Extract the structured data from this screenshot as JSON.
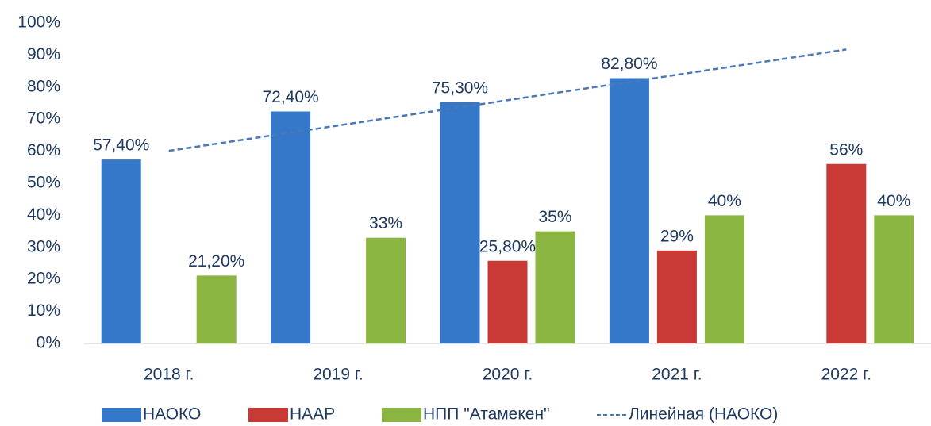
{
  "chart_data": {
    "type": "bar",
    "categories": [
      "2018 г.",
      "2019 г.",
      "2020 г.",
      "2021 г.",
      "2022 г."
    ],
    "series": [
      {
        "name": "НАОКО",
        "color": "#3577c8",
        "values": [
          57.4,
          72.4,
          75.3,
          82.8,
          null
        ],
        "value_labels": [
          "57,40%",
          "72,40%",
          "75,30%",
          "82,80%",
          null
        ]
      },
      {
        "name": "НААР",
        "color": "#c93a36",
        "values": [
          null,
          null,
          25.8,
          29,
          56
        ],
        "value_labels": [
          null,
          null,
          "25,80%",
          "29%",
          "56%"
        ]
      },
      {
        "name": "НПП \"Атамекен\"",
        "color": "#8ab540",
        "values": [
          21.2,
          33,
          35,
          40,
          40
        ],
        "value_labels": [
          "21,20%",
          "33%",
          "35%",
          "40%",
          "40%"
        ]
      }
    ],
    "trendline": {
      "name": "Линейная (НАОКО)",
      "series": 0,
      "type": "linear",
      "color": "#4a78b5",
      "dashed": true
    },
    "ylim": [
      0,
      100
    ],
    "yticks": [
      {
        "value": 0,
        "label": "0%"
      },
      {
        "value": 10,
        "label": "10%"
      },
      {
        "value": 20,
        "label": "20%"
      },
      {
        "value": 30,
        "label": "30%"
      },
      {
        "value": 40,
        "label": "40%"
      },
      {
        "value": 50,
        "label": "50%"
      },
      {
        "value": 60,
        "label": "60%"
      },
      {
        "value": 70,
        "label": "70%"
      },
      {
        "value": 80,
        "label": "80%"
      },
      {
        "value": 90,
        "label": "90%"
      },
      {
        "value": 100,
        "label": "100%"
      }
    ],
    "grid": false,
    "legend": "bottom"
  }
}
